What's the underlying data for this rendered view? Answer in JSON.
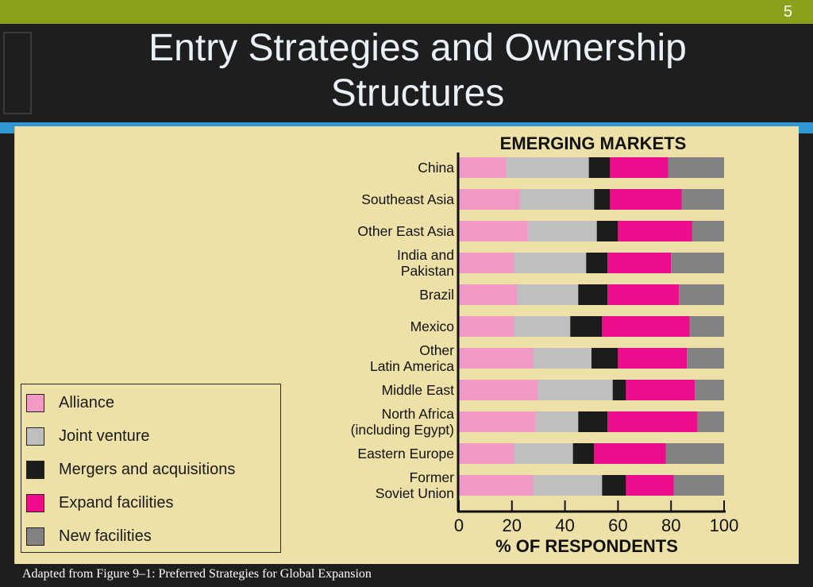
{
  "slide": {
    "number": "5",
    "title_line1": "Entry Strategies and Ownership",
    "title_line2": "Structures",
    "caption": "Adapted from Figure 9–1: Preferred Strategies for Global Expansion"
  },
  "chart_data": {
    "type": "bar",
    "orientation": "horizontal",
    "stacked": true,
    "title": "EMERGING MARKETS",
    "xlabel": "% OF RESPONDENTS",
    "ylabel": "",
    "xlim": [
      0,
      100
    ],
    "xticks": [
      0,
      20,
      40,
      60,
      80,
      100
    ],
    "grid": false,
    "legend_position": "bottom-left",
    "categories": [
      [
        "China"
      ],
      [
        "Southeast Asia"
      ],
      [
        "Other East Asia"
      ],
      [
        "India and",
        "Pakistan"
      ],
      [
        "Brazil"
      ],
      [
        "Mexico"
      ],
      [
        "Other",
        "Latin America"
      ],
      [
        "Middle East"
      ],
      [
        "North Africa",
        "(including Egypt)"
      ],
      [
        "Eastern Europe"
      ],
      [
        "Former",
        "Soviet Union"
      ]
    ],
    "series": [
      {
        "name": "Alliance",
        "color": "#f29ac6",
        "values": [
          18,
          23,
          26,
          21,
          22,
          21,
          28,
          30,
          29,
          21,
          28
        ]
      },
      {
        "name": "Joint venture",
        "color": "#bfbfbf",
        "values": [
          31,
          28,
          26,
          27,
          23,
          21,
          22,
          28,
          16,
          22,
          26
        ]
      },
      {
        "name": "Mergers and acquisitions",
        "color": "#1c1c1c",
        "values": [
          8,
          6,
          8,
          8,
          11,
          12,
          10,
          5,
          11,
          8,
          9
        ]
      },
      {
        "name": "Expand facilities",
        "color": "#ec0c8c",
        "values": [
          22,
          27,
          28,
          24,
          27,
          33,
          26,
          26,
          34,
          27,
          18
        ]
      },
      {
        "name": "New facilities",
        "color": "#828282",
        "values": [
          21,
          16,
          12,
          20,
          17,
          13,
          14,
          11,
          10,
          22,
          19
        ]
      }
    ]
  }
}
